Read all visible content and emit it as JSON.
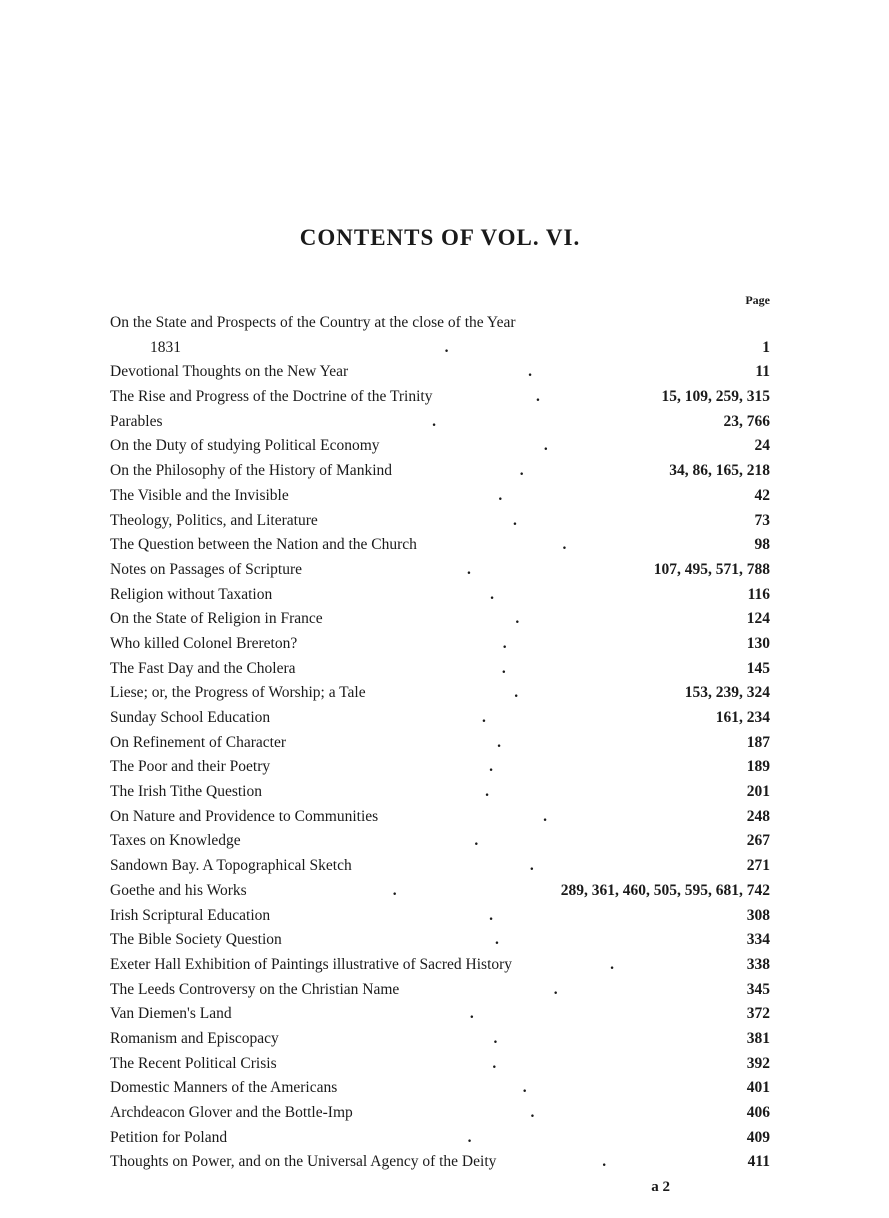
{
  "title": "CONTENTS OF VOL. VI.",
  "page_label": "Page",
  "footer_signature": "a 2",
  "entries": [
    {
      "title": "On the State and Prospects of the Country at the close of the Year",
      "pages": "",
      "continued": false,
      "nodots": true
    },
    {
      "title": "1831",
      "pages": "1",
      "continued": true
    },
    {
      "title": "Devotional Thoughts on the New Year",
      "pages": "11"
    },
    {
      "title": "The Rise and Progress of the Doctrine of the Trinity",
      "pages": "15, 109, 259, 315"
    },
    {
      "title": "Parables",
      "pages": "23, 766"
    },
    {
      "title": "On the Duty of studying Political Economy",
      "pages": "24"
    },
    {
      "title": "On the Philosophy of the History of Mankind",
      "pages": "34, 86, 165, 218"
    },
    {
      "title": "The Visible and the Invisible",
      "pages": "42"
    },
    {
      "title": "Theology, Politics, and Literature",
      "pages": "73"
    },
    {
      "title": "The Question between the Nation and the Church",
      "pages": "98"
    },
    {
      "title": "Notes on Passages of Scripture",
      "pages": "107, 495, 571, 788"
    },
    {
      "title": "Religion without Taxation",
      "pages": "116"
    },
    {
      "title": "On the State of Religion in France",
      "pages": "124"
    },
    {
      "title": "Who killed Colonel Brereton?",
      "pages": "130"
    },
    {
      "title": "The Fast Day and the Cholera",
      "pages": "145"
    },
    {
      "title": "Liese; or, the Progress of Worship; a Tale",
      "pages": "153, 239, 324"
    },
    {
      "title": "Sunday School Education",
      "pages": "161, 234"
    },
    {
      "title": "On Refinement of Character",
      "pages": "187"
    },
    {
      "title": "The Poor and their Poetry",
      "pages": "189"
    },
    {
      "title": "The Irish Tithe Question",
      "pages": "201"
    },
    {
      "title": "On Nature and Providence to Communities",
      "pages": "248"
    },
    {
      "title": "Taxes on Knowledge",
      "pages": "267"
    },
    {
      "title": "Sandown Bay.  A Topographical Sketch",
      "pages": "271"
    },
    {
      "title": "Goethe and his Works",
      "pages": "289, 361, 460, 505, 595, 681, 742"
    },
    {
      "title": "Irish Scriptural Education",
      "pages": "308"
    },
    {
      "title": "The Bible Society Question",
      "pages": "334"
    },
    {
      "title": "Exeter Hall Exhibition of Paintings illustrative of Sacred History",
      "pages": "338"
    },
    {
      "title": "The Leeds Controversy on the Christian Name",
      "pages": "345"
    },
    {
      "title": "Van Diemen's Land",
      "pages": "372"
    },
    {
      "title": "Romanism and Episcopacy",
      "pages": "381"
    },
    {
      "title": "The Recent Political Crisis",
      "pages": "392"
    },
    {
      "title": "Domestic Manners of the Americans",
      "pages": "401"
    },
    {
      "title": "Archdeacon Glover and the Bottle-Imp",
      "pages": "406"
    },
    {
      "title": "Petition for Poland",
      "pages": "409"
    },
    {
      "title": "Thoughts on Power, and on the Universal Agency of the Deity",
      "pages": "411"
    }
  ]
}
